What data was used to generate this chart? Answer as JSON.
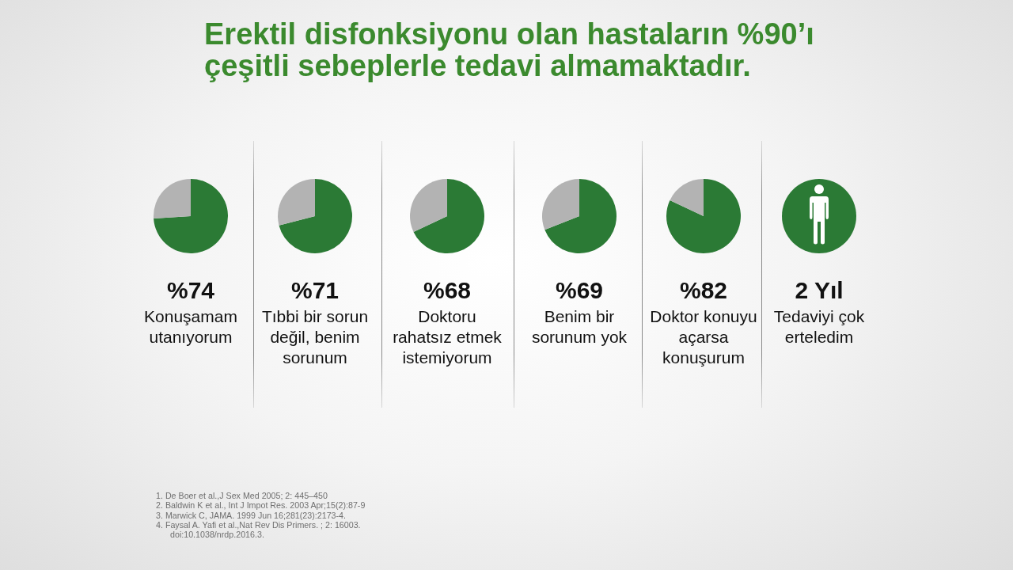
{
  "chart_data": [
    {
      "type": "other",
      "title": "Erektil disfonksiyonu olan hastaların %90’ı çeşitli sebeplerle tedavi almamaktadır."
    },
    {
      "type": "pie",
      "categories": [
        null,
        null
      ],
      "values": [
        74,
        26
      ],
      "colors": [
        "#2b7a35",
        "#b3b3b3"
      ],
      "value_labels": [
        "%74",
        null
      ],
      "title": "Konuşamam utanıyorum"
    },
    {
      "type": "pie",
      "categories": [
        null,
        null
      ],
      "values": [
        71,
        29
      ],
      "colors": [
        "#2b7a35",
        "#b3b3b3"
      ],
      "value_labels": [
        "%71",
        null
      ],
      "title": "Tıbbi bir sorun değil, benim sorunum"
    },
    {
      "type": "pie",
      "categories": [
        null,
        null
      ],
      "values": [
        68,
        32
      ],
      "colors": [
        "#2b7a35",
        "#b3b3b3"
      ],
      "value_labels": [
        "%68",
        null
      ],
      "title": "Doktoru rahatsız etmek istemiyorum"
    },
    {
      "type": "pie",
      "categories": [
        null,
        null
      ],
      "values": [
        69,
        31
      ],
      "colors": [
        "#2b7a35",
        "#b3b3b3"
      ],
      "value_labels": [
        "%69",
        null
      ],
      "title": "Benim bir sorunum yok"
    },
    {
      "type": "pie",
      "categories": [
        null,
        null
      ],
      "values": [
        82,
        18
      ],
      "colors": [
        "#2b7a35",
        "#b3b3b3"
      ],
      "value_labels": [
        "%82",
        null
      ],
      "title": "Doktor konuyu açarsa konuşurum"
    },
    {
      "type": "other",
      "title": "2 Yıl",
      "subtitle": "Tedaviyi çok erteledim"
    },
    {
      "type": "other",
      "annotations": [
        "1. De Boer et al.,J Sex Med 2005; 2: 445–450",
        "2. Baldwin K et al., Int J Impot Res. 2003 Apr;15(2):87-9",
        "3. Marwick C, JAMA. 1999 Jun 16;281(23):2173-4.",
        "4. Faysal A. Yafi et al.,Nat Rev Dis Primers. ; 2: 16003. doi:10.1038/nrdp.2016.3."
      ]
    }
  ]
}
